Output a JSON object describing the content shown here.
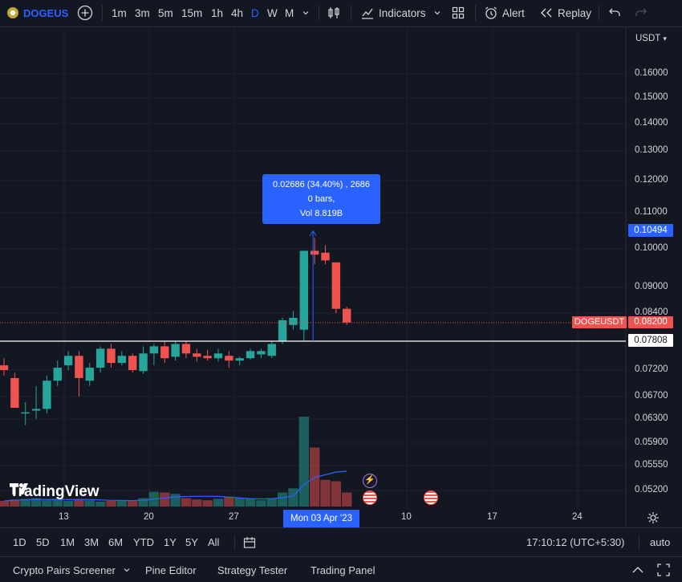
{
  "toolbar": {
    "symbol": "DOGEUS",
    "add_symbol_icon": "plus-circle-icon",
    "intervals": [
      "1m",
      "3m",
      "5m",
      "15m",
      "1h",
      "4h",
      "D",
      "W",
      "M"
    ],
    "active_interval": "D",
    "indicators_label": "Indicators",
    "alert_label": "Alert",
    "replay_label": "Replay"
  },
  "chart": {
    "currency": "USDT",
    "symbol_tag": "DOGEUSDT",
    "last_price": "0.08200",
    "crosshair_price": "0.07808",
    "target_price": "0.10494",
    "measure_tooltip": {
      "line1": "0.02686 (34.40%) , 2686",
      "line2": "0 bars,",
      "line3": "Vol 8.819B"
    },
    "price_ticks": [
      "0.16000",
      "0.15000",
      "0.14000",
      "0.13000",
      "0.12000",
      "0.11000",
      "0.10000",
      "0.09000",
      "0.08400",
      "0.07200",
      "0.06700",
      "0.06300",
      "0.05900",
      "0.05550",
      "0.05200"
    ],
    "date_ticks": [
      "13",
      "20",
      "27",
      "10",
      "17",
      "24"
    ],
    "crosshair_date": "Mon 03 Apr '23",
    "watermark": "TradingView",
    "colors": {
      "up": "#26a69a",
      "down": "#ef5350",
      "accent": "#2962ff",
      "background": "#131722"
    }
  },
  "chart_data": {
    "type": "candlestick",
    "unit": "USDT",
    "candles": [
      {
        "o": 0.073,
        "h": 0.0745,
        "l": 0.071,
        "c": 0.072
      },
      {
        "o": 0.0705,
        "h": 0.0715,
        "l": 0.065,
        "c": 0.065
      },
      {
        "o": 0.064,
        "h": 0.066,
        "l": 0.062,
        "c": 0.0642
      },
      {
        "o": 0.0645,
        "h": 0.069,
        "l": 0.063,
        "c": 0.0648
      },
      {
        "o": 0.0648,
        "h": 0.071,
        "l": 0.064,
        "c": 0.07
      },
      {
        "o": 0.07,
        "h": 0.074,
        "l": 0.069,
        "c": 0.0725
      },
      {
        "o": 0.073,
        "h": 0.076,
        "l": 0.072,
        "c": 0.075
      },
      {
        "o": 0.075,
        "h": 0.076,
        "l": 0.067,
        "c": 0.0705
      },
      {
        "o": 0.07,
        "h": 0.0735,
        "l": 0.069,
        "c": 0.0725
      },
      {
        "o": 0.0725,
        "h": 0.077,
        "l": 0.0715,
        "c": 0.0765
      },
      {
        "o": 0.0765,
        "h": 0.0775,
        "l": 0.0725,
        "c": 0.0735
      },
      {
        "o": 0.0735,
        "h": 0.076,
        "l": 0.073,
        "c": 0.075
      },
      {
        "o": 0.075,
        "h": 0.0755,
        "l": 0.0715,
        "c": 0.072
      },
      {
        "o": 0.0718,
        "h": 0.077,
        "l": 0.0713,
        "c": 0.0755
      },
      {
        "o": 0.0755,
        "h": 0.0775,
        "l": 0.073,
        "c": 0.077
      },
      {
        "o": 0.077,
        "h": 0.078,
        "l": 0.0735,
        "c": 0.0745
      },
      {
        "o": 0.0748,
        "h": 0.078,
        "l": 0.074,
        "c": 0.0775
      },
      {
        "o": 0.0775,
        "h": 0.078,
        "l": 0.0745,
        "c": 0.0755
      },
      {
        "o": 0.0755,
        "h": 0.0765,
        "l": 0.0738,
        "c": 0.0748
      },
      {
        "o": 0.075,
        "h": 0.0763,
        "l": 0.074,
        "c": 0.0745
      },
      {
        "o": 0.0745,
        "h": 0.0765,
        "l": 0.0738,
        "c": 0.0755
      },
      {
        "o": 0.075,
        "h": 0.076,
        "l": 0.0725,
        "c": 0.074
      },
      {
        "o": 0.074,
        "h": 0.0748,
        "l": 0.073,
        "c": 0.0745
      },
      {
        "o": 0.0745,
        "h": 0.0765,
        "l": 0.0742,
        "c": 0.076
      },
      {
        "o": 0.0753,
        "h": 0.0765,
        "l": 0.0745,
        "c": 0.076
      },
      {
        "o": 0.075,
        "h": 0.078,
        "l": 0.0745,
        "c": 0.0775
      },
      {
        "o": 0.078,
        "h": 0.083,
        "l": 0.0775,
        "c": 0.0825
      },
      {
        "o": 0.0815,
        "h": 0.0845,
        "l": 0.0805,
        "c": 0.083
      },
      {
        "o": 0.0805,
        "h": 0.0995,
        "l": 0.078,
        "c": 0.0995
      },
      {
        "o": 0.0995,
        "h": 0.103,
        "l": 0.096,
        "c": 0.0985
      },
      {
        "o": 0.099,
        "h": 0.101,
        "l": 0.096,
        "c": 0.097
      },
      {
        "o": 0.0965,
        "h": 0.0965,
        "l": 0.084,
        "c": 0.085
      },
      {
        "o": 0.085,
        "h": 0.0855,
        "l": 0.0815,
        "c": 0.082
      }
    ],
    "volume": [
      0.4,
      0.5,
      0.55,
      0.6,
      0.45,
      0.55,
      0.4,
      0.5,
      0.45,
      0.35,
      0.4,
      0.4,
      0.45,
      0.6,
      1.05,
      1.0,
      0.9,
      0.6,
      0.5,
      0.45,
      0.55,
      0.7,
      0.6,
      0.55,
      0.45,
      0.6,
      1.0,
      1.3,
      6.4,
      4.2,
      1.9,
      1.8,
      1.0
    ]
  },
  "range_bar": {
    "ranges": [
      "1D",
      "5D",
      "1M",
      "3M",
      "6M",
      "YTD",
      "1Y",
      "5Y",
      "All"
    ],
    "time": "17:10:12 (UTC+5:30)",
    "scale_mode": "auto"
  },
  "panel": {
    "tabs": [
      "Crypto Pairs Screener",
      "Pine Editor",
      "Strategy Tester",
      "Trading Panel"
    ]
  }
}
